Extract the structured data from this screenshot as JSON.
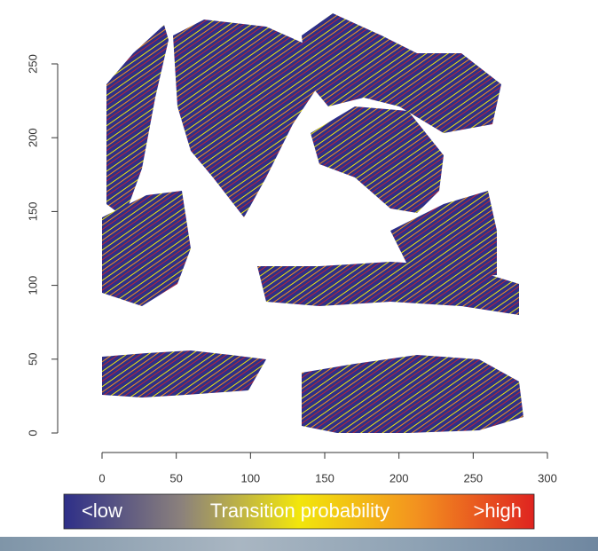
{
  "chart_data": {
    "type": "segments",
    "xlim": [
      0,
      300
    ],
    "ylim": [
      0,
      250
    ],
    "xticks": [
      0,
      50,
      100,
      150,
      200,
      250,
      300
    ],
    "yticks": [
      0,
      50,
      100,
      150,
      200,
      250
    ],
    "colorbar": {
      "colors": [
        "#2e2f88",
        "#8b817c",
        "#f2e60c",
        "#f3921f",
        "#df2420"
      ],
      "labels": [
        "<low",
        "Transition probability",
        ">high"
      ]
    }
  }
}
